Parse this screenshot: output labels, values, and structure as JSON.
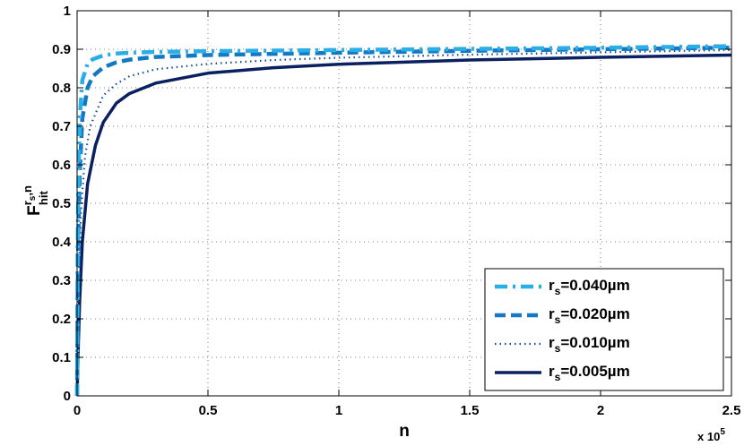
{
  "chart_data": {
    "type": "line",
    "xlabel": "n",
    "ylabel_main": "F",
    "ylabel_sup_main": "r",
    "ylabel_sup_sub": "s",
    "ylabel_sup_tail": ",n",
    "ylabel_sub": "hit",
    "x_multiplier_base": "x 10",
    "x_multiplier_exp": "5",
    "x_ticks": [
      0,
      0.5,
      1,
      1.5,
      2,
      2.5
    ],
    "x_tick_labels": [
      "0",
      "0.5",
      "1",
      "1.5",
      "2",
      "2.5"
    ],
    "y_ticks": [
      0,
      0.1,
      0.2,
      0.3,
      0.4,
      0.5,
      0.6,
      0.7,
      0.8,
      0.9,
      1
    ],
    "y_tick_labels": [
      "0",
      "0.1",
      "0.2",
      "0.3",
      "0.4",
      "0.5",
      "0.6",
      "0.7",
      "0.8",
      "0.9",
      "1"
    ],
    "xlim": [
      0,
      2.5
    ],
    "ylim": [
      0,
      1
    ],
    "grid": true,
    "legend_position": "bottom-right",
    "series": [
      {
        "label_main": "r",
        "label_sub": "s",
        "label_value": "=0.040µm",
        "color": "#2aaee8",
        "dash": "dashdot",
        "x": [
          0,
          0.002,
          0.005,
          0.01,
          0.02,
          0.04,
          0.06,
          0.1,
          0.15,
          0.2,
          0.3,
          0.5,
          1.0,
          1.5,
          2.0,
          2.5
        ],
        "y": [
          0,
          0.35,
          0.55,
          0.72,
          0.82,
          0.862,
          0.874,
          0.884,
          0.889,
          0.891,
          0.893,
          0.895,
          0.898,
          0.901,
          0.904,
          0.908
        ]
      },
      {
        "label_main": "r",
        "label_sub": "s",
        "label_value": "=0.020µm",
        "color": "#1479c2",
        "dash": "dashed",
        "x": [
          0,
          0.002,
          0.005,
          0.01,
          0.02,
          0.04,
          0.06,
          0.1,
          0.15,
          0.2,
          0.3,
          0.5,
          0.75,
          1.0,
          1.5,
          2.0,
          2.5
        ],
        "y": [
          0,
          0.22,
          0.42,
          0.58,
          0.72,
          0.8,
          0.83,
          0.853,
          0.866,
          0.873,
          0.88,
          0.885,
          0.888,
          0.891,
          0.896,
          0.9,
          0.904
        ]
      },
      {
        "label_main": "r",
        "label_sub": "s",
        "label_value": "=0.010µm",
        "color": "#0f4c94",
        "dash": "dotted",
        "x": [
          0,
          0.003,
          0.007,
          0.015,
          0.03,
          0.05,
          0.1,
          0.15,
          0.2,
          0.3,
          0.5,
          0.75,
          1.0,
          1.5,
          2.0,
          2.5
        ],
        "y": [
          0,
          0.16,
          0.32,
          0.48,
          0.62,
          0.7,
          0.78,
          0.81,
          0.83,
          0.848,
          0.862,
          0.872,
          0.878,
          0.886,
          0.892,
          0.898
        ]
      },
      {
        "label_main": "r",
        "label_sub": "s",
        "label_value": "=0.005µm",
        "color": "#0a2060",
        "dash": "solid",
        "x": [
          0,
          0.005,
          0.01,
          0.02,
          0.04,
          0.07,
          0.1,
          0.15,
          0.2,
          0.3,
          0.5,
          0.75,
          1.0,
          1.5,
          2.0,
          2.5
        ],
        "y": [
          0,
          0.14,
          0.25,
          0.4,
          0.55,
          0.65,
          0.71,
          0.76,
          0.785,
          0.812,
          0.838,
          0.852,
          0.861,
          0.872,
          0.879,
          0.885
        ]
      }
    ]
  }
}
